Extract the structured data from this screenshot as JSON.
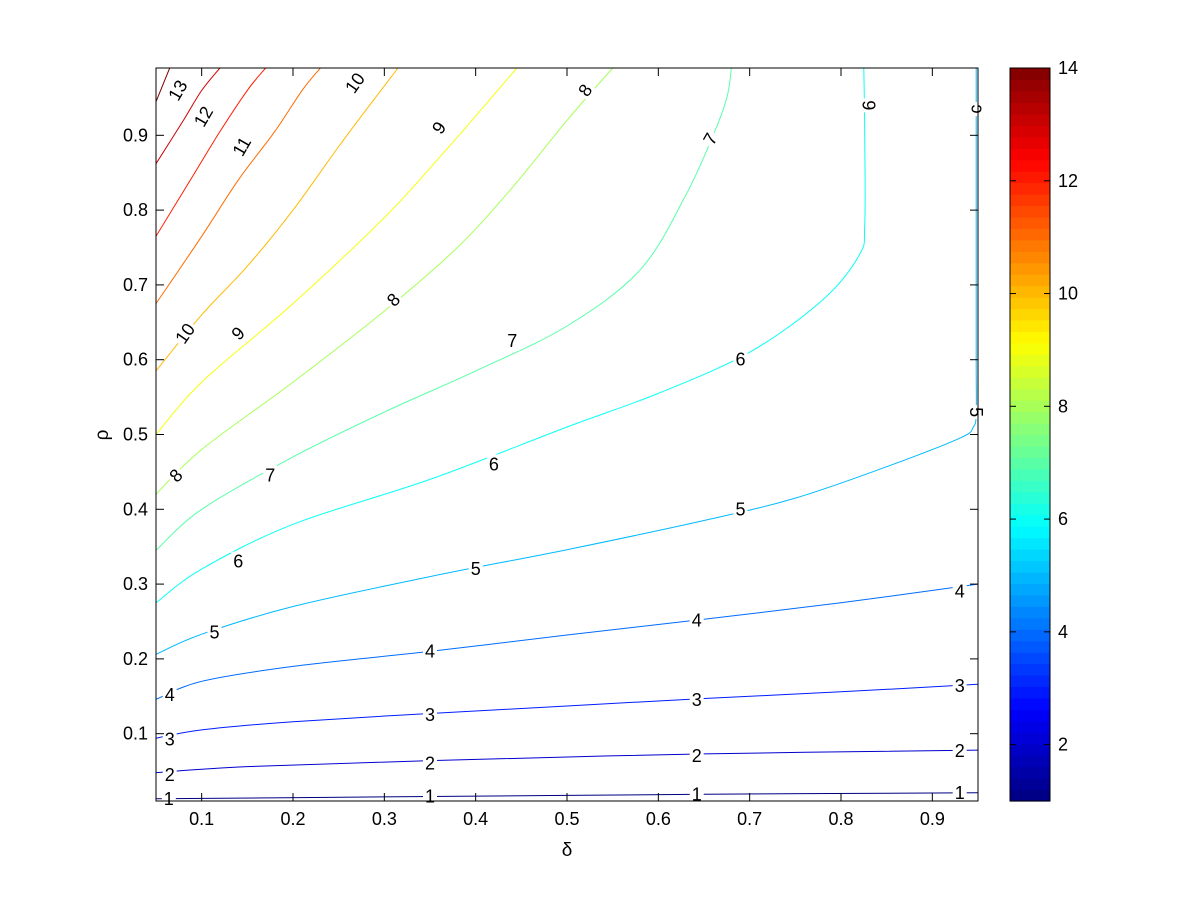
{
  "chart_data": {
    "type": "contour",
    "title": "",
    "xlabel": "δ",
    "ylabel": "ρ",
    "xlim": [
      0.05,
      0.95
    ],
    "ylim": [
      0.01,
      0.99
    ],
    "xticks": [
      0.1,
      0.2,
      0.3,
      0.4,
      0.5,
      0.6,
      0.7,
      0.8,
      0.9
    ],
    "yticks": [
      0.1,
      0.2,
      0.3,
      0.4,
      0.5,
      0.6,
      0.7,
      0.8,
      0.9
    ],
    "colormap": "jet",
    "clim": [
      1,
      14
    ],
    "colorbar": {
      "position": "right",
      "ticks": [
        2,
        4,
        6,
        8,
        10,
        12,
        14
      ]
    },
    "grid": false,
    "levels": [
      {
        "level": 1,
        "points": [
          [
            0.05,
            0.013
          ],
          [
            0.35,
            0.016
          ],
          [
            0.65,
            0.019
          ],
          [
            0.95,
            0.021
          ]
        ]
      },
      {
        "level": 2,
        "points": [
          [
            0.05,
            0.048
          ],
          [
            0.15,
            0.056
          ],
          [
            0.35,
            0.064
          ],
          [
            0.65,
            0.073
          ],
          [
            0.95,
            0.078
          ]
        ]
      },
      {
        "level": 3,
        "points": [
          [
            0.05,
            0.094
          ],
          [
            0.1,
            0.105
          ],
          [
            0.2,
            0.116
          ],
          [
            0.35,
            0.127
          ],
          [
            0.5,
            0.137
          ],
          [
            0.65,
            0.147
          ],
          [
            0.8,
            0.156
          ],
          [
            0.95,
            0.166
          ]
        ]
      },
      {
        "level": 4,
        "points": [
          [
            0.05,
            0.146
          ],
          [
            0.1,
            0.17
          ],
          [
            0.2,
            0.19
          ],
          [
            0.35,
            0.21
          ],
          [
            0.5,
            0.232
          ],
          [
            0.65,
            0.253
          ],
          [
            0.8,
            0.275
          ],
          [
            0.95,
            0.3
          ]
        ]
      },
      {
        "level": 5,
        "points": [
          [
            0.05,
            0.206
          ],
          [
            0.1,
            0.233
          ],
          [
            0.2,
            0.27
          ],
          [
            0.35,
            0.31
          ],
          [
            0.5,
            0.346
          ],
          [
            0.65,
            0.385
          ],
          [
            0.75,
            0.415
          ],
          [
            0.85,
            0.457
          ],
          [
            0.93,
            0.495
          ],
          [
            0.945,
            0.51
          ],
          [
            0.948,
            0.53
          ],
          [
            0.948,
            0.6
          ],
          [
            0.948,
            0.8
          ],
          [
            0.948,
            0.99
          ]
        ]
      },
      {
        "level": 6,
        "points": [
          [
            0.05,
            0.275
          ],
          [
            0.1,
            0.32
          ],
          [
            0.2,
            0.38
          ],
          [
            0.35,
            0.44
          ],
          [
            0.5,
            0.51
          ],
          [
            0.6,
            0.555
          ],
          [
            0.7,
            0.61
          ],
          [
            0.78,
            0.68
          ],
          [
            0.82,
            0.74
          ],
          [
            0.826,
            0.78
          ],
          [
            0.826,
            0.9
          ],
          [
            0.825,
            0.99
          ]
        ]
      },
      {
        "level": 7,
        "points": [
          [
            0.05,
            0.345
          ],
          [
            0.1,
            0.4
          ],
          [
            0.2,
            0.47
          ],
          [
            0.3,
            0.53
          ],
          [
            0.4,
            0.585
          ],
          [
            0.5,
            0.645
          ],
          [
            0.58,
            0.72
          ],
          [
            0.63,
            0.82
          ],
          [
            0.66,
            0.9
          ],
          [
            0.675,
            0.95
          ],
          [
            0.68,
            0.99
          ]
        ]
      },
      {
        "level": 8,
        "points": [
          [
            0.05,
            0.42
          ],
          [
            0.1,
            0.48
          ],
          [
            0.2,
            0.57
          ],
          [
            0.3,
            0.665
          ],
          [
            0.38,
            0.75
          ],
          [
            0.44,
            0.83
          ],
          [
            0.5,
            0.92
          ],
          [
            0.55,
            0.99
          ]
        ]
      },
      {
        "level": 9,
        "points": [
          [
            0.05,
            0.5
          ],
          [
            0.1,
            0.57
          ],
          [
            0.2,
            0.675
          ],
          [
            0.3,
            0.79
          ],
          [
            0.36,
            0.87
          ],
          [
            0.41,
            0.94
          ],
          [
            0.445,
            0.99
          ]
        ]
      },
      {
        "level": 10,
        "points": [
          [
            0.05,
            0.585
          ],
          [
            0.1,
            0.66
          ],
          [
            0.15,
            0.725
          ],
          [
            0.2,
            0.8
          ],
          [
            0.25,
            0.885
          ],
          [
            0.29,
            0.95
          ],
          [
            0.315,
            0.99
          ]
        ]
      },
      {
        "level": 11,
        "points": [
          [
            0.05,
            0.675
          ],
          [
            0.1,
            0.765
          ],
          [
            0.14,
            0.84
          ],
          [
            0.18,
            0.905
          ],
          [
            0.21,
            0.96
          ],
          [
            0.23,
            0.99
          ]
        ]
      },
      {
        "level": 12,
        "points": [
          [
            0.05,
            0.765
          ],
          [
            0.09,
            0.845
          ],
          [
            0.12,
            0.905
          ],
          [
            0.15,
            0.96
          ],
          [
            0.17,
            0.99
          ]
        ]
      },
      {
        "level": 13,
        "points": [
          [
            0.05,
            0.862
          ],
          [
            0.08,
            0.92
          ],
          [
            0.1,
            0.96
          ],
          [
            0.12,
            0.99
          ]
        ]
      },
      {
        "level": 14,
        "points": [
          [
            0.05,
            0.945
          ],
          [
            0.065,
            0.99
          ]
        ]
      }
    ],
    "contour_labels": [
      {
        "text": "1",
        "x": 0.064,
        "y": 0.013,
        "angle": 0
      },
      {
        "text": "1",
        "x": 0.35,
        "y": 0.016,
        "angle": 0
      },
      {
        "text": "1",
        "x": 0.642,
        "y": 0.019,
        "angle": 0
      },
      {
        "text": "1",
        "x": 0.93,
        "y": 0.021,
        "angle": 0
      },
      {
        "text": "2",
        "x": 0.065,
        "y": 0.045,
        "angle": 0
      },
      {
        "text": "2",
        "x": 0.35,
        "y": 0.06,
        "angle": 0
      },
      {
        "text": "2",
        "x": 0.642,
        "y": 0.07,
        "angle": 0
      },
      {
        "text": "2",
        "x": 0.93,
        "y": 0.077,
        "angle": 0
      },
      {
        "text": "3",
        "x": 0.065,
        "y": 0.092,
        "angle": 0
      },
      {
        "text": "3",
        "x": 0.35,
        "y": 0.125,
        "angle": 0
      },
      {
        "text": "3",
        "x": 0.642,
        "y": 0.145,
        "angle": 0
      },
      {
        "text": "3",
        "x": 0.93,
        "y": 0.164,
        "angle": 0
      },
      {
        "text": "4",
        "x": 0.065,
        "y": 0.152,
        "angle": 0
      },
      {
        "text": "4",
        "x": 0.35,
        "y": 0.21,
        "angle": 0
      },
      {
        "text": "4",
        "x": 0.642,
        "y": 0.251,
        "angle": 0
      },
      {
        "text": "4",
        "x": 0.93,
        "y": 0.29,
        "angle": 0
      },
      {
        "text": "5",
        "x": 0.114,
        "y": 0.235,
        "angle": 0
      },
      {
        "text": "5",
        "x": 0.4,
        "y": 0.32,
        "angle": 0
      },
      {
        "text": "5",
        "x": 0.69,
        "y": 0.4,
        "angle": 0
      },
      {
        "text": "5",
        "x": 0.948,
        "y": 0.53,
        "angle": -90
      },
      {
        "text": "6",
        "x": 0.14,
        "y": 0.33,
        "angle": 0
      },
      {
        "text": "6",
        "x": 0.42,
        "y": 0.46,
        "angle": 0
      },
      {
        "text": "6",
        "x": 0.69,
        "y": 0.6,
        "angle": 0
      },
      {
        "text": "6",
        "x": 0.831,
        "y": 0.94,
        "angle": 90
      },
      {
        "text": "7",
        "x": 0.175,
        "y": 0.445,
        "angle": 0
      },
      {
        "text": "7",
        "x": 0.44,
        "y": 0.625,
        "angle": 0
      },
      {
        "text": "7",
        "x": 0.657,
        "y": 0.895,
        "angle": 60
      },
      {
        "text": "8",
        "x": 0.072,
        "y": 0.445,
        "angle": 45
      },
      {
        "text": "8",
        "x": 0.31,
        "y": 0.68,
        "angle": 45
      },
      {
        "text": "8",
        "x": 0.52,
        "y": 0.96,
        "angle": 55
      },
      {
        "text": "9",
        "x": 0.14,
        "y": 0.635,
        "angle": 45
      },
      {
        "text": "9",
        "x": 0.36,
        "y": 0.91,
        "angle": 55
      },
      {
        "text": "10",
        "x": 0.082,
        "y": 0.635,
        "angle": 55
      },
      {
        "text": "10",
        "x": 0.268,
        "y": 0.97,
        "angle": 55
      },
      {
        "text": "11",
        "x": 0.144,
        "y": 0.885,
        "angle": 60
      },
      {
        "text": "12",
        "x": 0.102,
        "y": 0.925,
        "angle": 60
      },
      {
        "text": "13",
        "x": 0.074,
        "y": 0.96,
        "angle": 60
      },
      {
        "text": "c",
        "x": 0.947,
        "y": 0.935,
        "angle": 90
      }
    ]
  }
}
